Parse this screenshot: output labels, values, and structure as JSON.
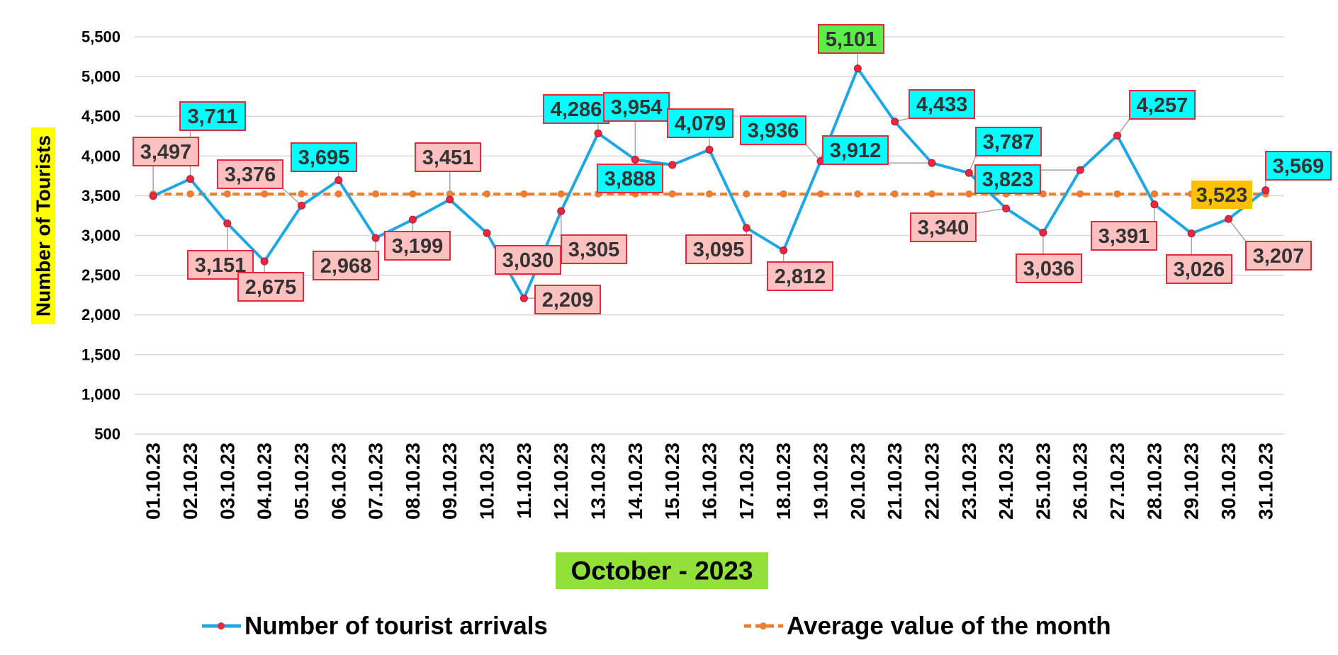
{
  "chart_data": {
    "type": "line",
    "title": "",
    "xlabel": "October - 2023",
    "ylabel": "Number of Tourists",
    "ylim": [
      500,
      5500
    ],
    "ytick_step": 500,
    "yticks": [
      "500",
      "1,000",
      "1,500",
      "2,000",
      "2,500",
      "3,000",
      "3,500",
      "4,000",
      "4,500",
      "5,000",
      "5,500"
    ],
    "grid": true,
    "legend_position": "bottom",
    "categories": [
      "01.10.23",
      "02.10.23",
      "03.10.23",
      "04.10.23",
      "05.10.23",
      "06.10.23",
      "07.10.23",
      "08.10.23",
      "09.10.23",
      "10.10.23",
      "11.10.23",
      "12.10.23",
      "13.10.23",
      "14.10.23",
      "15.10.23",
      "16.10.23",
      "17.10.23",
      "18.10.23",
      "19.10.23",
      "20.10.23",
      "21.10.23",
      "22.10.23",
      "23.10.23",
      "24.10.23",
      "25.10.23",
      "26.10.23",
      "27.10.23",
      "28.10.23",
      "29.10.23",
      "30.10.23",
      "31.10.23"
    ],
    "series": [
      {
        "name": "Number of tourist arrivals",
        "color": "#1ea7e4",
        "marker_color": "#e8283c",
        "values": [
          3497,
          3711,
          3151,
          2675,
          3376,
          3695,
          2968,
          3199,
          3451,
          3030,
          2209,
          3305,
          4286,
          3954,
          3888,
          4079,
          3095,
          2812,
          3936,
          5101,
          4433,
          3912,
          3787,
          3340,
          3036,
          3823,
          4257,
          3391,
          3026,
          3207,
          3569
        ],
        "labels": [
          "3,497",
          "3,711",
          "3,151",
          "2,675",
          "3,376",
          "3,695",
          "2,968",
          "3,199",
          "3,451",
          "3,030",
          "2,209",
          "3,305",
          "4,286",
          "3,954",
          "3,888",
          "4,079",
          "3,095",
          "2,812",
          "3,936",
          "5,101",
          "4,433",
          "3,912",
          "3,787",
          "3,340",
          "3,036",
          "3,823",
          "4,257",
          "3,391",
          "3,026",
          "3,207",
          "3,569"
        ]
      },
      {
        "name": "Average value of the month",
        "color": "#ed7d31",
        "value": 3523,
        "label": "3,523"
      }
    ],
    "colors": {
      "above_avg_fill": "#00ffff",
      "below_avg_fill": "#ffc0c0",
      "max_fill": "#5eec4a",
      "avg_fill": "#ffc000",
      "label_border": "#e8283c",
      "ylabel_bg": "#ffff00",
      "xlabel_bg": "#92e03a"
    }
  }
}
